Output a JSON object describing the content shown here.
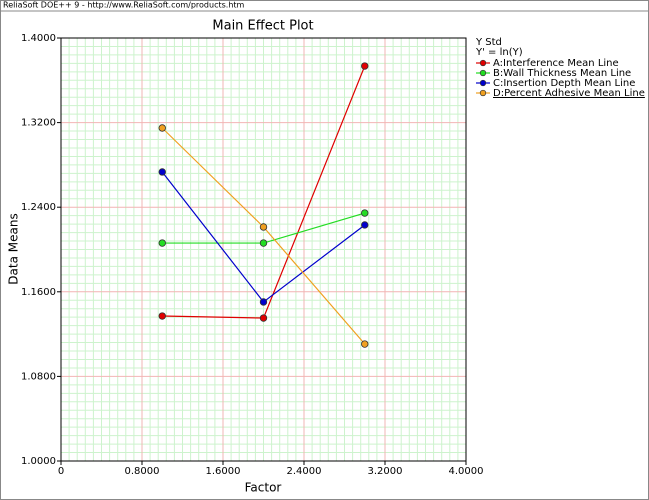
{
  "window_title": "ReliaSoft DOE++ 9 - http://www.ReliaSoft.com/products.htm",
  "chart_data": {
    "type": "line",
    "title": "Main Effect Plot",
    "x_label": "Factor",
    "y_label": "Data Means",
    "legend_title": "Y Std",
    "legend_subtitle": "Y' = ln(Y)",
    "x": [
      1,
      2,
      3
    ],
    "series": [
      {
        "name": "A:Interference Mean Line",
        "color": "#e00000",
        "values": [
          1.1371,
          1.1352,
          1.3735
        ]
      },
      {
        "name": "B:Wall Thickness Mean Line",
        "color": "#22dd22",
        "values": [
          1.2061,
          1.2061,
          1.2345
        ]
      },
      {
        "name": "C:Insertion Depth Mean Line",
        "color": "#0000cc",
        "values": [
          1.2733,
          1.1504,
          1.2232
        ]
      },
      {
        "name": "D:Percent Adhesive Mean Line",
        "color": "#f0a020",
        "values": [
          1.3149,
          1.2213,
          1.1106
        ]
      }
    ],
    "xlim": [
      0,
      4
    ],
    "ylim": [
      1.0,
      1.4
    ],
    "xticks": [
      0,
      {
        "value": 0.8,
        "label": "0.8000"
      },
      {
        "value": 1.6,
        "label": "1.6000"
      },
      {
        "value": 2.4,
        "label": "2.4000"
      },
      {
        "value": 3.2,
        "label": "3.2000"
      },
      {
        "value": 4,
        "label": "4.0000"
      }
    ],
    "yticks": [
      {
        "value": 1.0,
        "label": "1.0000"
      },
      {
        "value": 1.08,
        "label": "1.0800"
      },
      {
        "value": 1.16,
        "label": "1.1600"
      },
      {
        "value": 1.24,
        "label": "1.2400"
      },
      {
        "value": 1.32,
        "label": "1.3200"
      },
      {
        "value": 1.4,
        "label": "1.4000"
      }
    ],
    "grid": true,
    "minor_grid": true
  }
}
